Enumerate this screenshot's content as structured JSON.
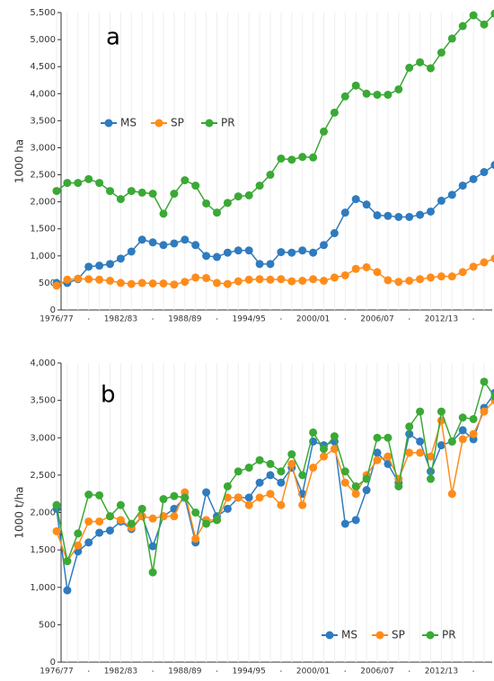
{
  "chart_data": [
    {
      "type": "line",
      "title": "a",
      "ylabel": "1000 ha",
      "categories": [
        "1976/77",
        null,
        null,
        null,
        null,
        null,
        "1982/83",
        null,
        null,
        null,
        null,
        null,
        "1988/89",
        null,
        null,
        null,
        null,
        null,
        "1994/95",
        null,
        null,
        null,
        null,
        null,
        "2000/01",
        null,
        null,
        null,
        null,
        null,
        "2006/07",
        null,
        null,
        null,
        null,
        null,
        "2012/13",
        null,
        null,
        null,
        null,
        null
      ],
      "series": [
        {
          "name": "MS",
          "color": "#2f7bbf",
          "values": [
            500,
            500,
            570,
            800,
            820,
            850,
            950,
            1080,
            1300,
            1250,
            1200,
            1230,
            1300,
            1200,
            1000,
            980,
            1060,
            1100,
            1100,
            850,
            850,
            1070,
            1060,
            1100,
            1060,
            1200,
            1420,
            1800,
            2050,
            1950,
            1750,
            1740,
            1720,
            1720,
            1760,
            1820,
            2020,
            2130,
            2300,
            2420,
            2550,
            2680
          ]
        },
        {
          "name": "SP",
          "color": "#ff8c1a",
          "values": [
            450,
            560,
            580,
            570,
            560,
            540,
            500,
            480,
            500,
            490,
            490,
            470,
            520,
            600,
            590,
            500,
            480,
            530,
            560,
            570,
            560,
            570,
            530,
            540,
            570,
            540,
            600,
            640,
            760,
            790,
            700,
            550,
            520,
            540,
            570,
            600,
            620,
            620,
            700,
            800,
            880,
            950
          ]
        },
        {
          "name": "PR",
          "color": "#3aa935",
          "values": [
            2200,
            2350,
            2350,
            2420,
            2350,
            2200,
            2050,
            2200,
            2170,
            2150,
            1780,
            2150,
            2400,
            2300,
            1970,
            1800,
            1980,
            2100,
            2120,
            2300,
            2500,
            2800,
            2780,
            2830,
            2820,
            3300,
            3650,
            3950,
            4150,
            4000,
            3980,
            3980,
            4080,
            4480,
            4580,
            4470,
            4760,
            5020,
            5250,
            5450,
            5280,
            5480
          ]
        }
      ],
      "ylim": [
        0,
        5500
      ],
      "yticks": [
        0,
        500,
        {
          "value": 1000,
          "label": "1,000"
        },
        {
          "value": 1500,
          "label": "1,500"
        },
        {
          "value": 2000,
          "label": "2,000"
        },
        {
          "value": 2500,
          "label": "2,500"
        },
        {
          "value": 3000,
          "label": "3,000"
        },
        {
          "value": 3500,
          "label": "3,500"
        },
        {
          "value": 4000,
          "label": "4,000"
        },
        {
          "value": 4500,
          "label": "4,500"
        },
        {
          "value": 5000,
          "label": "5,000"
        },
        {
          "value": 5500,
          "label": "5,500"
        }
      ],
      "legend": "left"
    },
    {
      "type": "line",
      "title": "b",
      "ylabel": "1000 t/ha",
      "categories": [
        "1976/77",
        null,
        null,
        null,
        null,
        null,
        "1982/83",
        null,
        null,
        null,
        null,
        null,
        "1988/89",
        null,
        null,
        null,
        null,
        null,
        "1994/95",
        null,
        null,
        null,
        null,
        null,
        "2000/01",
        null,
        null,
        null,
        null,
        null,
        "2006/07",
        null,
        null,
        null,
        null,
        null,
        "2012/13",
        null,
        null,
        null,
        null,
        null
      ],
      "series": [
        {
          "name": "MS",
          "color": "#2f7bbf",
          "values": [
            2050,
            960,
            1480,
            1600,
            1730,
            1760,
            1880,
            1780,
            1950,
            1550,
            1950,
            2050,
            2200,
            1600,
            2270,
            1950,
            2050,
            2200,
            2200,
            2400,
            2500,
            2400,
            2600,
            2250,
            2950,
            2900,
            2950,
            1850,
            1900,
            2300,
            2800,
            2650,
            2400,
            3050,
            2950,
            2550,
            2900,
            2950,
            3100,
            2980,
            3400,
            3600
          ]
        },
        {
          "name": "SP",
          "color": "#ff8c1a",
          "values": [
            1750,
            1350,
            1560,
            1880,
            1880,
            1950,
            1900,
            1800,
            1950,
            1920,
            1950,
            1950,
            2270,
            1650,
            1900,
            1900,
            2200,
            2200,
            2100,
            2200,
            2250,
            2100,
            2650,
            2100,
            2600,
            2750,
            2850,
            2400,
            2250,
            2500,
            2700,
            2750,
            2450,
            2800,
            2800,
            2750,
            3230,
            2250,
            2980,
            3050,
            3350,
            3500
          ]
        },
        {
          "name": "PR",
          "color": "#3aa935",
          "values": [
            2100,
            1350,
            1720,
            2240,
            2230,
            1950,
            2100,
            1850,
            2050,
            1200,
            2180,
            2220,
            2200,
            2000,
            1850,
            1900,
            2350,
            2550,
            2600,
            2700,
            2650,
            2550,
            2780,
            2500,
            3070,
            2850,
            3020,
            2550,
            2350,
            2450,
            3000,
            3000,
            2350,
            3150,
            3350,
            2450,
            3350,
            2950,
            3270,
            3250,
            3750,
            3550
          ]
        }
      ],
      "ylim": [
        0,
        4000
      ],
      "yticks": [
        0,
        500,
        {
          "value": 1000,
          "label": "1,000"
        },
        {
          "value": 1500,
          "label": "1,500"
        },
        {
          "value": 2000,
          "label": "2,000"
        },
        {
          "value": 2500,
          "label": "2,500"
        },
        {
          "value": 3000,
          "label": "3,000"
        },
        {
          "value": 3500,
          "label": "3,500"
        },
        {
          "value": 4000,
          "label": "4,000"
        }
      ],
      "legend": "lower right"
    }
  ]
}
